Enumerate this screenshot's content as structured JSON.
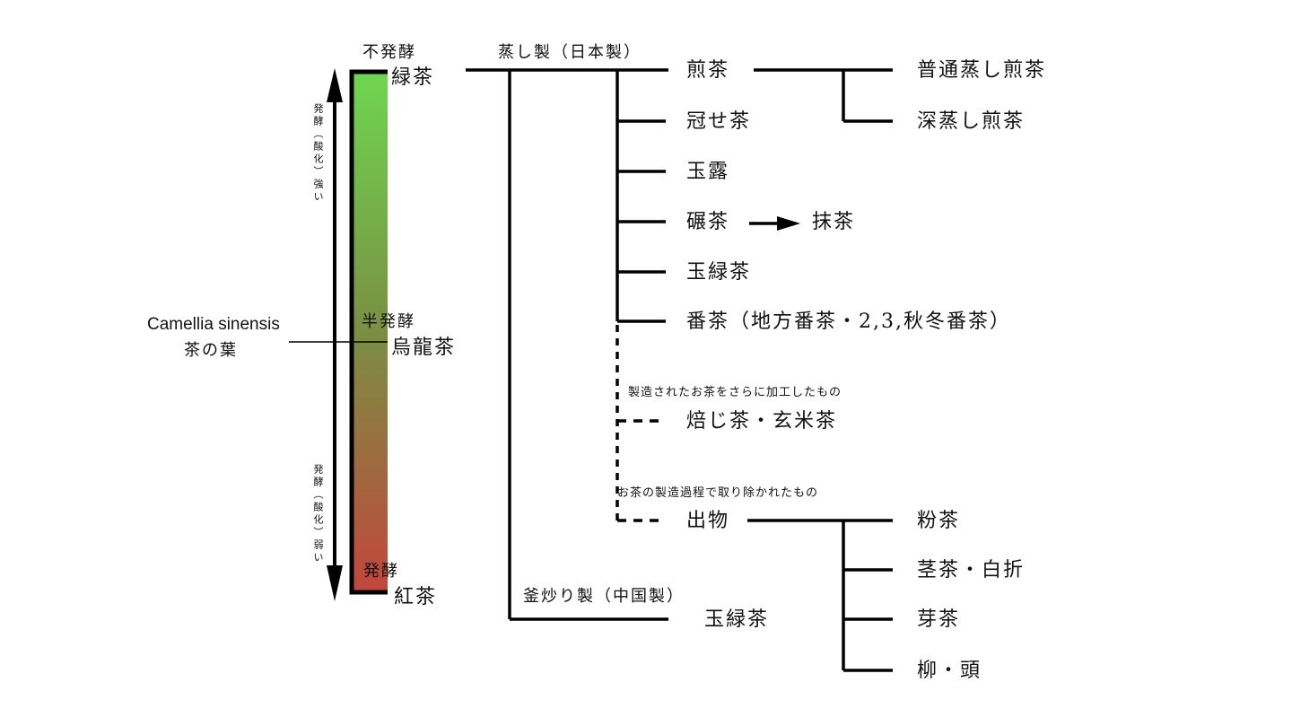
{
  "scale": {
    "top_label": "不発酵",
    "top_tea": "緑茶",
    "mid_label": "半発酵",
    "mid_tea": "烏龍茶",
    "bottom_label": "発酵",
    "bottom_tea": "紅茶",
    "arrow_up_text": "発酵（酸化）強い",
    "arrow_down_text": "発酵（酸化）弱い",
    "gradient_colors": [
      "#6fd650",
      "#7a8f42",
      "#c2463c"
    ]
  },
  "root": {
    "name": "Camellia sinensis",
    "japanese": "茶の葉"
  },
  "steamed": {
    "label": "蒸し製（日本製）",
    "items": [
      "煎茶",
      "冠せ茶",
      "玉露",
      "碾茶",
      "玉緑茶",
      "番茶（地方番茶・2,3,秋冬番茶）"
    ],
    "sencha_children": [
      "普通蒸し煎茶",
      "深蒸し煎茶"
    ],
    "tencha_product": "抹茶",
    "processed_note": "製造されたお茶をさらに加工したもの",
    "processed_item": "焙じ茶・玄米茶",
    "byproduct_note": "お茶の製造過程で取り除かれたもの",
    "byproduct_item": "出物",
    "byproduct_children": [
      "粉茶",
      "茎茶・白折",
      "芽茶",
      "柳・頭"
    ]
  },
  "panfired": {
    "label": "釜炒り製（中国製）",
    "item": "玉緑茶"
  }
}
